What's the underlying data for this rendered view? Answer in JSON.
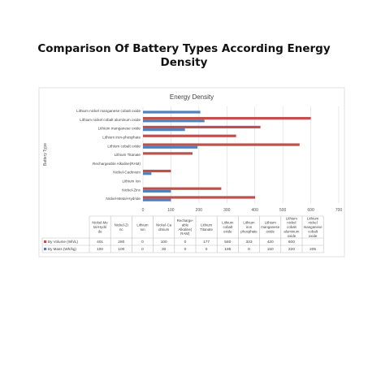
{
  "page": {
    "title_line1": "Comparison Of Battery Types According Energy",
    "title_line2": "Density"
  },
  "chart_data": {
    "type": "bar",
    "orientation": "horizontal",
    "title": "Energy Density",
    "ylabel": "Battery Type",
    "xlim": [
      0,
      700
    ],
    "x_ticks": [
      0,
      100,
      200,
      300,
      400,
      500,
      600,
      700
    ],
    "grid": true,
    "legend": "bottom-left (in data table)",
    "categories": [
      "Nickel-Metal-Hydride",
      "Nickel-Zinc",
      "Lithium Ion",
      "Nickel-Cadmium",
      "Rechargeable Alkaline(RAM)",
      "Lithium Titanate",
      "Lithium cobalt oxide",
      "Lithium iron-phosphate",
      "Lithium manganese oxide",
      "Lithium nickel cobalt aluminum oxide",
      "Lithium nickel manganese cobalt oxide"
    ],
    "table_headers": [
      "Nickel-Metal-Hydride",
      "Nickel-Zinc",
      "Lithium Ion",
      "Nickel-Cadmium",
      "Recharge-able Alkaline(RAM)",
      "Lithium Titanate",
      "Lithium cobalt oxide",
      "Lithium iron phosphate",
      "Lithium manganese oxide",
      "Lithium nickel cobalt aluminum oxide",
      "Lithium nickel manganese cobalt oxide"
    ],
    "series": [
      {
        "name": "By Volume (Wh/L)",
        "color": "#c0504d",
        "values": [
          401,
          280,
          0,
          100,
          0,
          177,
          560,
          333,
          420,
          600,
          null
        ]
      },
      {
        "name": "By Mass (Wh/kg)",
        "color": "#4f81bd",
        "values": [
          100,
          100,
          0,
          30,
          0,
          0,
          195,
          0,
          150,
          220,
          205
        ]
      }
    ]
  }
}
